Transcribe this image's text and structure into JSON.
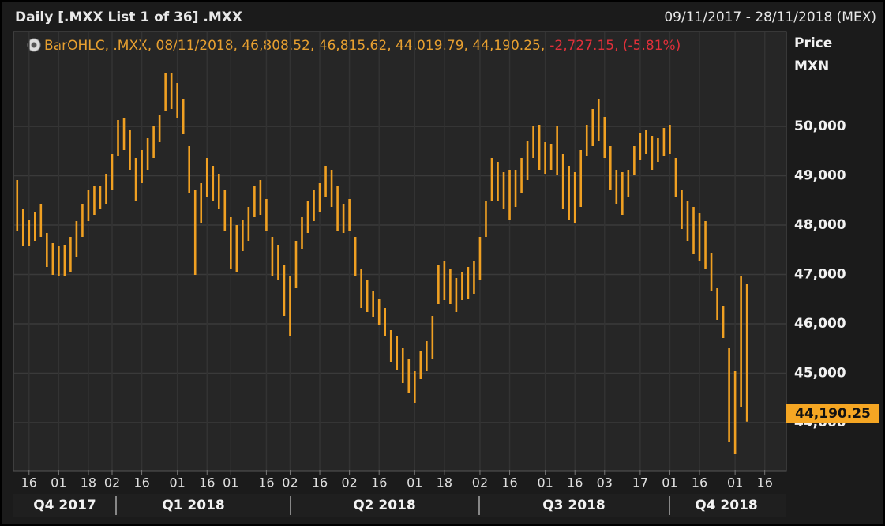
{
  "chart_data": {
    "type": "ohlc",
    "title": "Daily [.MXX List 1 of 36] .MXX",
    "date_range": "09/11/2017 - 28/11/2018 (MEX)",
    "legend": {
      "text": "BarOHLC, .MXX, 08/11/2018, 46,808.52, 46,815.62, 44,019.79, 44,190.25,",
      "change": "-2,727.15, (-5.81%)"
    },
    "y_axis_label": "Price",
    "y_axis_unit": "MXN",
    "color": "#f0a022",
    "grid": true,
    "ylim": [
      43040,
      51920
    ],
    "yticks": [
      {
        "value": 44000,
        "label": "44,000"
      },
      {
        "value": 45000,
        "label": "45,000"
      },
      {
        "value": 46000,
        "label": "46,000"
      },
      {
        "value": 47000,
        "label": "47,000"
      },
      {
        "value": 48000,
        "label": "48,000"
      },
      {
        "value": 49000,
        "label": "49,000"
      },
      {
        "value": 50000,
        "label": "50,000"
      }
    ],
    "last_label": {
      "value": 44190.25,
      "label": "44,190.25"
    },
    "quarters": [
      "Q4 2017",
      "Q1 2018",
      "Q2 2018",
      "Q3 2018",
      "Q4 2018"
    ],
    "categories": [
      null,
      null,
      "16",
      null,
      null,
      null,
      null,
      "01",
      null,
      null,
      null,
      null,
      "18",
      null,
      null,
      null,
      "02",
      null,
      null,
      null,
      null,
      "16",
      null,
      null,
      null,
      null,
      null,
      "01",
      null,
      null,
      null,
      null,
      "16",
      null,
      null,
      null,
      "01",
      null,
      null,
      null,
      null,
      null,
      "16",
      null,
      null,
      null,
      "02",
      null,
      null,
      null,
      null,
      "16",
      null,
      null,
      null,
      null,
      "02",
      null,
      null,
      null,
      null,
      "16",
      null,
      null,
      null,
      null,
      null,
      "01",
      null,
      null,
      null,
      null,
      "18",
      null,
      null,
      null,
      null,
      null,
      "02",
      null,
      null,
      null,
      null,
      "16",
      null,
      null,
      null,
      null,
      null,
      "01",
      null,
      null,
      null,
      null,
      "16",
      null,
      null,
      null,
      null,
      "03",
      null,
      null,
      null,
      null,
      null,
      "17",
      null,
      null,
      null,
      null,
      "01",
      null,
      null,
      null,
      null,
      "16",
      null,
      null,
      null,
      null,
      null,
      "01",
      null,
      null,
      null,
      null,
      "16",
      null,
      null,
      null
    ],
    "high": [
      48912,
      48320,
      48112,
      48272,
      48432,
      47840,
      47632,
      47568,
      47600,
      47760,
      48080,
      48432,
      48720,
      48784,
      48800,
      49040,
      49440,
      50128,
      50160,
      49920,
      49360,
      49520,
      49760,
      50000,
      50240,
      51088,
      51088,
      50880,
      50560,
      49600,
      48720,
      48848,
      49360,
      49200,
      49040,
      48720,
      48160,
      48000,
      48112,
      48368,
      48800,
      48912,
      48528,
      47760,
      47600,
      47200,
      46960,
      47680,
      48160,
      48480,
      48720,
      48848,
      49200,
      49120,
      48800,
      48432,
      48528,
      47760,
      47120,
      46880,
      46672,
      46512,
      46320,
      45872,
      45760,
      45520,
      45280,
      45040,
      45440,
      45648,
      46160,
      47200,
      47280,
      47120,
      46928,
      47040,
      47152,
      47280,
      47760,
      48480,
      49360,
      49280,
      49072,
      49120,
      49120,
      49360,
      49712,
      50000,
      50032,
      49680,
      49648,
      50000,
      49440,
      49200,
      49072,
      49520,
      50032,
      50352,
      50560,
      50192,
      49600,
      49120,
      49072,
      49120,
      49600,
      49872,
      49920,
      49808,
      49760,
      49968,
      50032,
      49360,
      48720,
      48480,
      48368,
      48240,
      48080,
      47440,
      46720,
      46352,
      45520,
      45040,
      46960,
      46815.62,
      null,
      null,
      null,
      null,
      null,
      null
    ],
    "low": [
      47888,
      47568,
      47568,
      47680,
      47760,
      47152,
      46992,
      46960,
      46960,
      47040,
      47360,
      47760,
      48080,
      48208,
      48320,
      48432,
      48720,
      49392,
      49520,
      49120,
      48480,
      48848,
      49120,
      49360,
      49680,
      50320,
      50352,
      50160,
      49840,
      48640,
      46992,
      48048,
      48560,
      48480,
      48320,
      47888,
      47120,
      47040,
      47472,
      47680,
      48160,
      48208,
      47888,
      46960,
      46880,
      46160,
      45760,
      46720,
      47520,
      47840,
      48080,
      48272,
      48560,
      48368,
      47888,
      47840,
      47888,
      46960,
      46320,
      46240,
      46128,
      45968,
      45760,
      45232,
      45072,
      44800,
      44592,
      44400,
      44880,
      45040,
      45280,
      46400,
      46480,
      46400,
      46240,
      46480,
      46512,
      46608,
      46880,
      47760,
      48480,
      48480,
      48320,
      48112,
      48368,
      48640,
      48912,
      49360,
      49120,
      49040,
      49120,
      49008,
      48320,
      48112,
      48048,
      48368,
      49392,
      49600,
      49712,
      49360,
      48720,
      48432,
      48208,
      48560,
      49008,
      49328,
      49440,
      49120,
      49280,
      49392,
      49440,
      48560,
      47920,
      47680,
      47408,
      47280,
      47120,
      46672,
      46080,
      45712,
      43600,
      43360,
      44320,
      44019.79,
      null,
      null,
      null,
      null,
      null,
      null
    ]
  }
}
